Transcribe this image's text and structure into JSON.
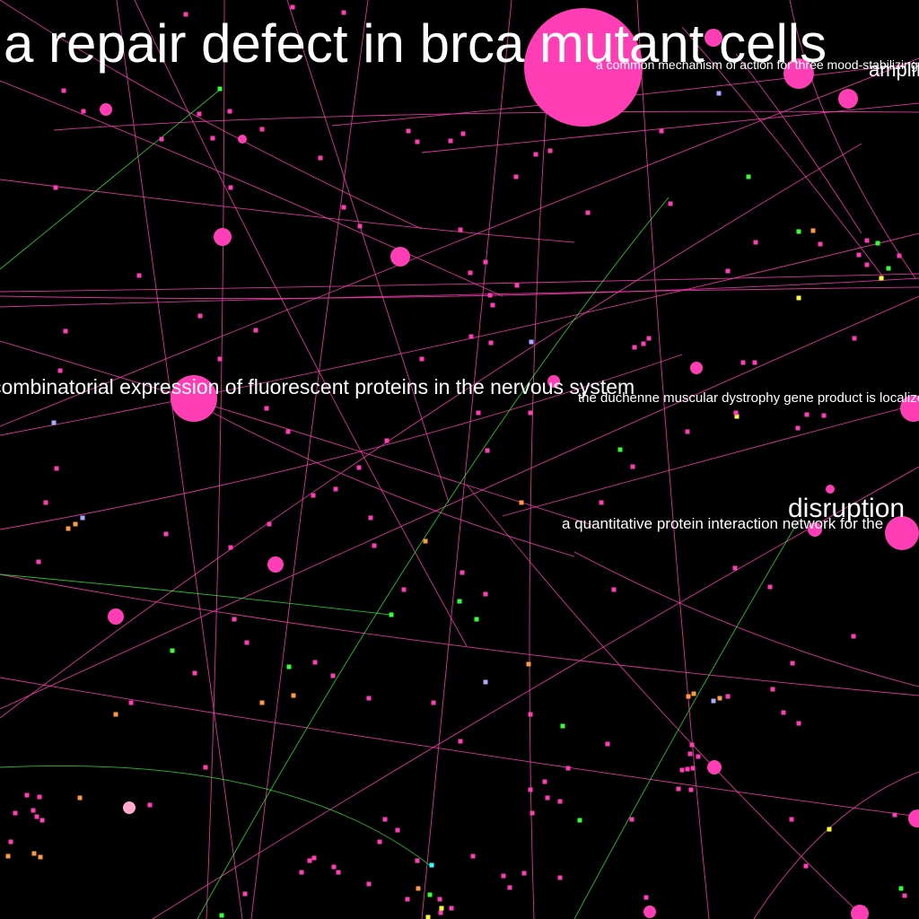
{
  "graph": {
    "background": "#000000",
    "colors": {
      "pink": "#ff3eb5",
      "green": "#33ff33",
      "orange": "#ff9944",
      "lavender": "#aaaaff",
      "yellow": "#ffff33",
      "cyan": "#33ffff",
      "light_pink": "#ffaacc"
    },
    "labels": [
      {
        "text": "a repair defect in brca mutant cells"
      },
      {
        "text": "a common mechanism of action for three mood-stabilizing drugs"
      },
      {
        "text": "amplification"
      },
      {
        "text": "combinatorial expression of fluorescent proteins in the nervous system"
      },
      {
        "text": "the duchenne muscular dystrophy gene product is localized in sarcolemma"
      },
      {
        "text": "disruption"
      },
      {
        "text": "a quantitative protein interaction network for the"
      }
    ]
  }
}
